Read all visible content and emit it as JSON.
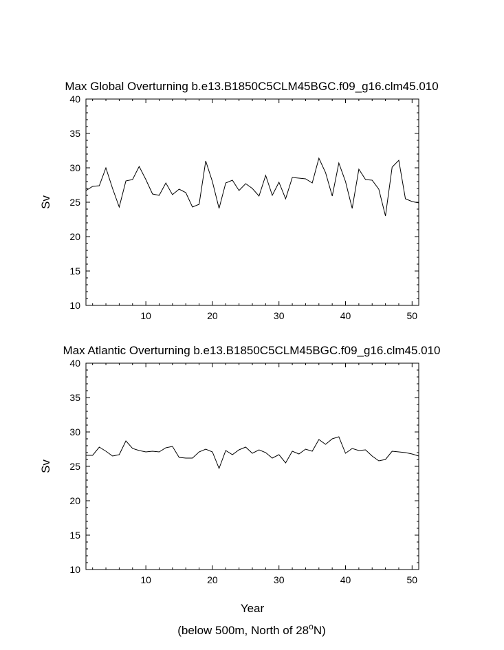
{
  "chart_data": [
    {
      "type": "line",
      "title": "Max Global Overturning b.e13.B1850C5CLM45BGC.f09_g16.clm45.010",
      "xlabel": "",
      "ylabel": "Sv",
      "xlim": [
        1,
        51
      ],
      "ylim": [
        10,
        40
      ],
      "xticks": [
        10,
        20,
        30,
        40,
        50
      ],
      "yticks": [
        10,
        15,
        20,
        25,
        30,
        35,
        40
      ],
      "grid": false,
      "series": [
        {
          "x": [
            1,
            2,
            3,
            4,
            5,
            6,
            7,
            8,
            9,
            10,
            11,
            12,
            13,
            14,
            15,
            16,
            17,
            18,
            19,
            20,
            21,
            22,
            23,
            24,
            25,
            26,
            27,
            28,
            29,
            30,
            31,
            32,
            33,
            34,
            35,
            36,
            37,
            38,
            39,
            40,
            41,
            42,
            43,
            44,
            45,
            46,
            47,
            48,
            49,
            50,
            51
          ],
          "values": [
            26.7,
            27.3,
            27.4,
            30.0,
            27.0,
            24.3,
            28.1,
            28.3,
            30.2,
            28.3,
            26.2,
            26.0,
            27.8,
            26.1,
            26.9,
            26.4,
            24.3,
            24.7,
            31.0,
            28.0,
            24.1,
            27.8,
            28.2,
            26.7,
            27.7,
            27.0,
            25.9,
            28.9,
            26.0,
            27.9,
            25.5,
            28.6,
            28.5,
            28.4,
            27.8,
            31.4,
            29.3,
            25.9,
            30.7,
            28.0,
            24.1,
            29.8,
            28.3,
            28.2,
            26.9,
            23.0,
            30.1,
            31.1,
            25.5,
            25.1,
            24.9
          ]
        }
      ]
    },
    {
      "type": "line",
      "title": "Max Atlantic Overturning b.e13.B1850C5CLM45BGC.f09_g16.clm45.010",
      "xlabel": "Year",
      "ylabel": "Sv",
      "xlim": [
        1,
        51
      ],
      "ylim": [
        10,
        40
      ],
      "xticks": [
        10,
        20,
        30,
        40,
        50
      ],
      "yticks": [
        10,
        15,
        20,
        25,
        30,
        35,
        40
      ],
      "grid": false,
      "series": [
        {
          "x": [
            1,
            2,
            3,
            4,
            5,
            6,
            7,
            8,
            9,
            10,
            11,
            12,
            13,
            14,
            15,
            16,
            17,
            18,
            19,
            20,
            21,
            22,
            23,
            24,
            25,
            26,
            27,
            28,
            29,
            30,
            31,
            32,
            33,
            34,
            35,
            36,
            37,
            38,
            39,
            40,
            41,
            42,
            43,
            44,
            45,
            46,
            47,
            48,
            49,
            50,
            51
          ],
          "values": [
            26.6,
            26.6,
            27.8,
            27.2,
            26.5,
            26.7,
            28.7,
            27.6,
            27.3,
            27.1,
            27.2,
            27.1,
            27.7,
            27.9,
            26.3,
            26.2,
            26.2,
            27.1,
            27.5,
            27.1,
            24.7,
            27.3,
            26.7,
            27.4,
            27.8,
            26.9,
            27.4,
            27.0,
            26.2,
            26.7,
            25.5,
            27.2,
            26.8,
            27.5,
            27.2,
            28.9,
            28.2,
            29.0,
            29.3,
            26.9,
            27.6,
            27.3,
            27.4,
            26.5,
            25.8,
            26.0,
            27.2,
            27.1,
            27.0,
            26.8,
            26.5
          ]
        }
      ]
    }
  ],
  "footnote": {
    "before": "(below 500m, North of 28",
    "sup": "o",
    "after": "N)"
  }
}
